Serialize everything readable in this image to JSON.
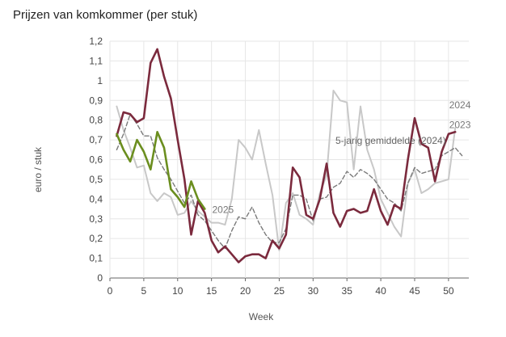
{
  "chart_data": {
    "type": "line",
    "title": "Prijzen van komkommer (per stuk)",
    "xlabel": "Week",
    "ylabel": "euro / stuk",
    "xlim": [
      0,
      53
    ],
    "ylim": [
      0,
      1.2
    ],
    "xticks": [
      0,
      5,
      10,
      15,
      20,
      25,
      30,
      35,
      40,
      45,
      50
    ],
    "yticks": [
      0,
      0.1,
      0.2,
      0.3,
      0.4,
      0.5,
      0.6,
      0.7,
      0.8,
      0.9,
      1,
      1.1,
      1.2
    ],
    "ytick_labels": [
      "0",
      "0,1",
      "0,2",
      "0,3",
      "0,4",
      "0,5",
      "0,6",
      "0,7",
      "0,8",
      "0,9",
      "1",
      "1,1",
      "1,2"
    ],
    "grid": true,
    "legend": "direct labels",
    "series": [
      {
        "name": "2023",
        "color": "#c8c8c8",
        "style": "solid",
        "x": [
          1,
          2,
          3,
          4,
          5,
          6,
          7,
          8,
          9,
          10,
          11,
          12,
          13,
          14,
          15,
          16,
          17,
          18,
          19,
          20,
          21,
          22,
          23,
          24,
          25,
          26,
          27,
          28,
          29,
          30,
          31,
          32,
          33,
          34,
          35,
          36,
          37,
          38,
          39,
          40,
          41,
          42,
          43,
          44,
          45,
          46,
          47,
          48,
          49,
          50,
          51
        ],
        "y": [
          0.87,
          0.75,
          0.66,
          0.56,
          0.57,
          0.43,
          0.39,
          0.43,
          0.41,
          0.32,
          0.33,
          0.39,
          0.34,
          0.31,
          0.28,
          0.28,
          0.27,
          0.4,
          0.7,
          0.66,
          0.6,
          0.75,
          0.58,
          0.42,
          0.14,
          0.38,
          0.43,
          0.32,
          0.3,
          0.27,
          0.43,
          0.52,
          0.95,
          0.9,
          0.89,
          0.55,
          0.87,
          0.65,
          0.55,
          0.4,
          0.33,
          0.26,
          0.21,
          0.48,
          0.55,
          0.43,
          0.45,
          0.48,
          0.49,
          0.5,
          0.76
        ]
      },
      {
        "name": "5-jarig gemiddelde (2024)",
        "color": "#7a7a7a",
        "style": "dashed",
        "x": [
          1,
          2,
          3,
          4,
          5,
          6,
          7,
          8,
          9,
          10,
          11,
          12,
          13,
          14,
          15,
          16,
          17,
          18,
          19,
          20,
          21,
          22,
          23,
          24,
          25,
          26,
          27,
          28,
          29,
          30,
          31,
          32,
          33,
          34,
          35,
          36,
          37,
          38,
          39,
          40,
          41,
          42,
          43,
          44,
          45,
          46,
          47,
          48,
          49,
          50,
          51,
          52
        ],
        "y": [
          0.65,
          0.73,
          0.83,
          0.78,
          0.72,
          0.72,
          0.61,
          0.55,
          0.5,
          0.44,
          0.38,
          0.42,
          0.32,
          0.29,
          0.24,
          0.19,
          0.15,
          0.24,
          0.31,
          0.3,
          0.36,
          0.28,
          0.22,
          0.18,
          0.18,
          0.25,
          0.42,
          0.42,
          0.4,
          0.29,
          0.4,
          0.41,
          0.46,
          0.48,
          0.54,
          0.51,
          0.55,
          0.53,
          0.5,
          0.45,
          0.4,
          0.38,
          0.34,
          0.48,
          0.56,
          0.53,
          0.54,
          0.55,
          0.62,
          0.64,
          0.66,
          0.62
        ]
      },
      {
        "name": "2024",
        "color": "#7b2a3d",
        "style": "solid",
        "x": [
          1,
          2,
          3,
          4,
          5,
          6,
          7,
          8,
          9,
          10,
          11,
          12,
          13,
          14,
          15,
          16,
          17,
          18,
          19,
          20,
          21,
          22,
          23,
          24,
          25,
          26,
          27,
          28,
          29,
          30,
          31,
          32,
          33,
          34,
          35,
          36,
          37,
          38,
          39,
          40,
          41,
          42,
          43,
          44,
          45,
          46,
          47,
          48,
          49,
          50,
          51
        ],
        "y": [
          0.72,
          0.84,
          0.83,
          0.79,
          0.81,
          1.09,
          1.16,
          1.02,
          0.91,
          0.7,
          0.5,
          0.22,
          0.39,
          0.33,
          0.19,
          0.13,
          0.16,
          0.12,
          0.08,
          0.11,
          0.12,
          0.12,
          0.1,
          0.19,
          0.15,
          0.22,
          0.56,
          0.51,
          0.32,
          0.3,
          0.4,
          0.58,
          0.33,
          0.26,
          0.34,
          0.35,
          0.33,
          0.34,
          0.45,
          0.34,
          0.27,
          0.37,
          0.35,
          0.6,
          0.81,
          0.68,
          0.66,
          0.49,
          0.64,
          0.73,
          0.74
        ]
      },
      {
        "name": "2025",
        "color": "#6b8e1f",
        "style": "solid",
        "x": [
          1,
          2,
          3,
          4,
          5,
          6,
          7,
          8,
          9,
          10,
          11,
          12,
          13,
          14
        ],
        "y": [
          0.73,
          0.65,
          0.59,
          0.7,
          0.64,
          0.55,
          0.74,
          0.66,
          0.45,
          0.41,
          0.36,
          0.49,
          0.4,
          0.35
        ]
      }
    ]
  }
}
